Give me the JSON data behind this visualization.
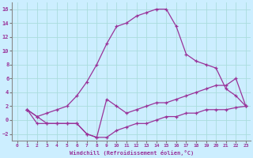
{
  "xlabel": "Windchill (Refroidissement éolien,°C)",
  "bg_color": "#cceeff",
  "grid_color": "#aadddd",
  "line_color": "#993399",
  "xlim": [
    -0.5,
    23.5
  ],
  "ylim": [
    -3.0,
    17.0
  ],
  "xticks": [
    0,
    1,
    2,
    3,
    4,
    5,
    6,
    7,
    8,
    9,
    10,
    11,
    12,
    13,
    14,
    15,
    16,
    17,
    18,
    19,
    20,
    21,
    22,
    23
  ],
  "yticks": [
    -2,
    0,
    2,
    4,
    6,
    8,
    10,
    12,
    14,
    16
  ],
  "line1_x": [
    1,
    2,
    3,
    4,
    5,
    6,
    7,
    8,
    9,
    10,
    11,
    12,
    13,
    14,
    15,
    16,
    17,
    18,
    19,
    20,
    21,
    22,
    23
  ],
  "line1_y": [
    1.5,
    0.5,
    -0.5,
    -0.5,
    -0.5,
    -0.5,
    -2.0,
    -2.5,
    -2.5,
    -1.5,
    -1.0,
    -0.5,
    -0.5,
    0.0,
    0.5,
    0.5,
    1.0,
    1.0,
    1.5,
    1.5,
    1.5,
    1.8,
    2.0
  ],
  "line2_x": [
    1,
    2,
    3,
    4,
    5,
    6,
    7,
    8,
    9,
    10,
    11,
    12,
    13,
    14,
    15,
    16,
    17,
    18,
    19,
    20,
    21,
    22,
    23
  ],
  "line2_y": [
    1.5,
    -0.5,
    -0.5,
    -0.5,
    -0.5,
    -0.5,
    -2.0,
    -2.5,
    3.0,
    2.0,
    1.0,
    1.5,
    2.0,
    2.5,
    2.5,
    3.0,
    3.5,
    4.0,
    4.5,
    5.0,
    5.0,
    6.0,
    2.0
  ],
  "line3_x": [
    1,
    2,
    3,
    4,
    5,
    6,
    7,
    8,
    9,
    10,
    11,
    12,
    13,
    14,
    15,
    16,
    17,
    18,
    19,
    20,
    21,
    22,
    23
  ],
  "line3_y": [
    1.5,
    0.5,
    1.0,
    1.5,
    2.0,
    3.5,
    5.5,
    8.0,
    11.0,
    13.5,
    14.0,
    15.0,
    15.5,
    16.0,
    16.0,
    13.5,
    9.5,
    8.5,
    8.0,
    7.5,
    4.5,
    3.5,
    2.0
  ]
}
